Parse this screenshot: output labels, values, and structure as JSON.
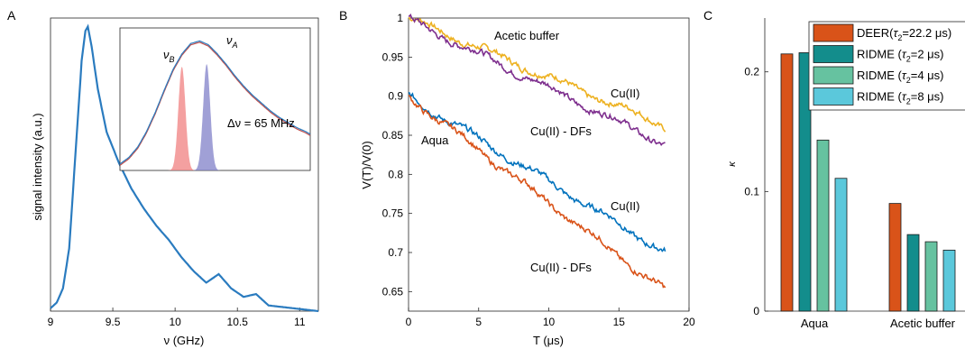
{
  "chart_data": [
    {
      "panel": "A",
      "type": "line",
      "xlabel": "ν (GHz)",
      "ylabel": "signal intensity (a.u.)",
      "xlim": [
        9.0,
        11.15
      ],
      "ylim": [
        0,
        1.03
      ],
      "xticks": [
        9,
        9.5,
        10,
        10.5,
        11
      ],
      "xtick_labels": [
        "9",
        "9.5",
        "10",
        "10.5",
        "11"
      ],
      "series": [
        {
          "color": "#2a7bbf",
          "x": [
            9.0,
            9.05,
            9.1,
            9.15,
            9.2,
            9.25,
            9.28,
            9.3,
            9.33,
            9.38,
            9.45,
            9.55,
            9.65,
            9.75,
            9.85,
            9.95,
            10.05,
            10.15,
            10.25,
            10.35,
            10.45,
            10.55,
            10.65,
            10.75,
            10.85,
            10.95,
            11.05,
            11.15
          ],
          "y": [
            0.01,
            0.03,
            0.08,
            0.22,
            0.55,
            0.88,
            0.985,
            1.0,
            0.93,
            0.78,
            0.63,
            0.52,
            0.43,
            0.36,
            0.3,
            0.25,
            0.19,
            0.14,
            0.1,
            0.13,
            0.08,
            0.05,
            0.06,
            0.02,
            0.015,
            0.01,
            0.005,
            0.0
          ]
        }
      ],
      "inset": {
        "labels": {
          "nu_b": "ν",
          "nu_b_sub": "B",
          "nu_a": "ν",
          "nu_a_sub": "A",
          "delta": "Δν = 65 MHz"
        },
        "xlim": [
          9.0,
          11.15
        ],
        "ylim": [
          0,
          1.1
        ],
        "spectrum_x": [
          9.0,
          9.1,
          9.2,
          9.3,
          9.4,
          9.5,
          9.6,
          9.7,
          9.8,
          9.9,
          10.0,
          10.1,
          10.2,
          10.3,
          10.4,
          10.5,
          10.6,
          10.7,
          10.8,
          10.9,
          11.0,
          11.1,
          11.15
        ],
        "spectrum_y": [
          0.05,
          0.1,
          0.18,
          0.3,
          0.45,
          0.62,
          0.78,
          0.9,
          0.98,
          1.0,
          0.97,
          0.9,
          0.82,
          0.73,
          0.65,
          0.58,
          0.52,
          0.46,
          0.41,
          0.37,
          0.33,
          0.3,
          0.28
        ],
        "pulses": [
          {
            "center": 9.7,
            "width": 0.04,
            "height": 0.8,
            "color": "#f08080"
          },
          {
            "center": 9.98,
            "width": 0.04,
            "height": 0.82,
            "color": "#8080c8"
          }
        ],
        "colors": {
          "blue": "#2a7bbf",
          "red": "#c0504d"
        }
      }
    },
    {
      "panel": "B",
      "type": "line",
      "xlabel": "T (μs)",
      "ylabel": "V(T)/V(0)",
      "xlim": [
        0,
        20
      ],
      "ylim": [
        0.625,
        1.0
      ],
      "xticks": [
        0,
        5,
        10,
        15,
        20
      ],
      "xtick_labels": [
        "0",
        "5",
        "10",
        "15",
        "20"
      ],
      "yticks": [
        0.65,
        0.7,
        0.75,
        0.8,
        0.85,
        0.9,
        0.95,
        1.0
      ],
      "ytick_labels": [
        "0.65",
        "0.7",
        "0.75",
        "0.8",
        "0.85",
        "0.9",
        "0.95",
        "1"
      ],
      "annotations": {
        "acetic": "Acetic buffer",
        "aqua": "Aqua",
        "cu_top": "Cu(II)",
        "cudf_top": "Cu(II) - DFs",
        "cu_bot": "Cu(II)",
        "cudf_bot": "Cu(II) - DFs"
      },
      "series": [
        {
          "group": "Acetic buffer",
          "label": "Cu(II)",
          "color": "#edb120",
          "y_start": 1.0,
          "y_end": 0.862
        },
        {
          "group": "Acetic buffer",
          "label": "Cu(II) - DFs",
          "color": "#7e2f8e",
          "y_start": 0.998,
          "y_end": 0.838
        },
        {
          "group": "Aqua",
          "label": "Cu(II)",
          "color": "#0072bd",
          "y_start": 0.9,
          "y_end": 0.7
        },
        {
          "group": "Aqua",
          "label": "Cu(II) - DFs",
          "color": "#d95319",
          "y_start": 0.899,
          "y_end": 0.651
        }
      ],
      "x_end": 18.3
    },
    {
      "panel": "C",
      "type": "bar",
      "ylabel": "κ",
      "ylim": [
        0,
        0.245
      ],
      "yticks": [
        0,
        0.1,
        0.2
      ],
      "ytick_labels": [
        "0",
        "0.1",
        "0.2"
      ],
      "categories": [
        "Aqua",
        "Acetic buffer"
      ],
      "legend_position": "top-right",
      "series": [
        {
          "name_main": "DEER(",
          "name_tau": "τ",
          "name_sub": "2",
          "name_rest": "=22.2 ",
          "name_unit": "μs)",
          "color": "#d95319",
          "values": [
            0.215,
            0.09
          ]
        },
        {
          "name_main": "RIDME (",
          "name_tau": "τ",
          "name_sub": "2",
          "name_rest": "=2 ",
          "name_unit": "μs)",
          "color": "#138d8c",
          "values": [
            0.216,
            0.064
          ]
        },
        {
          "name_main": "RIDME (",
          "name_tau": "τ",
          "name_sub": "2",
          "name_rest": "=4 ",
          "name_unit": "μs)",
          "color": "#66c2a0",
          "values": [
            0.143,
            0.058
          ]
        },
        {
          "name_main": "RIDME (",
          "name_tau": "τ",
          "name_sub": "2",
          "name_rest": "=8 ",
          "name_unit": "μs)",
          "color": "#5bc8db",
          "values": [
            0.111,
            0.051
          ]
        }
      ]
    }
  ],
  "panel_labels": {
    "a": "A",
    "b": "B",
    "c": "C"
  }
}
